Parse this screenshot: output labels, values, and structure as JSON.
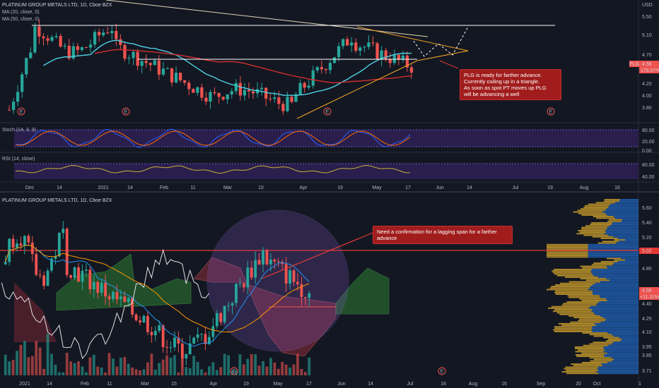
{
  "top_chart": {
    "title": "PLATINUM GROUP METALS LTD, 1D, Cboe BZX",
    "ma20_label": "MA (20, close, 0)",
    "ma50_label": "MA (50, close, 0)",
    "stoch_label": "Stoch (14, 3, 3)",
    "rsi_label": "RSI (14, close)",
    "currency": "USD",
    "price_axis": [
      "5.50",
      "5.10",
      "4.70",
      "4.56",
      "4.20",
      "4.00",
      "3.80"
    ],
    "stoch_axis": [
      "80.00",
      "20.00",
      "0.00"
    ],
    "rsi_axis": [
      "80.00",
      "40.00"
    ],
    "last_price_badge": "4.56",
    "ticker_badge": "PLG",
    "pct_badge": "176.07%",
    "date_axis": [
      "Dec",
      "14",
      "2021",
      "14",
      "Feb",
      "11",
      "Mar",
      "15",
      "Apr",
      "19",
      "May",
      "17",
      "Jun",
      "14",
      "Jul",
      "19",
      "Aug",
      "16"
    ],
    "earnings_marker": "E",
    "annotation": "PLG is ready for farther advance. Currently coiling up in a triangle.\nAs soon as spot PT moves up PLG\n   will be advancing a well"
  },
  "bottom_chart": {
    "title": "PLATINUM GROUP METALS LTD, 1D, Cboe BZX",
    "price_axis": [
      "5.60",
      "5.40",
      "5.20",
      "5.02",
      "4.80",
      "4.56",
      "4.40",
      "4.25",
      "4.10",
      "3.95",
      "3.85",
      "3.71"
    ],
    "resistance_badge": "5.02",
    "last_price_badge": "4.56",
    "pct_badge": "+11.11%",
    "date_axis": [
      "2021",
      "14",
      "Feb",
      "11",
      "Mar",
      "15",
      "Apr",
      "19",
      "May",
      "17",
      "Jun",
      "14",
      "Jul",
      "16",
      "Aug",
      "16",
      "Sep",
      "20",
      "Oct",
      "1"
    ],
    "earnings_marker": "E",
    "annotation": "Need a confirmation for a lagging span for a farther advance"
  },
  "colors": {
    "background": "#131722",
    "up_candle": "#26a69a",
    "down_candle": "#ef5350",
    "ma20": "#4dd0e1",
    "ma50": "#d32f2f",
    "triangle": "#f5a623",
    "stoch_band": "#2e1f52",
    "resistance": "#e53935",
    "cloud_green": "#2e7d32",
    "cloud_red": "#8e2b3a",
    "volume_profile_blue": "#1e5aa8",
    "volume_profile_gold": "#b8902a"
  },
  "chart_data": [
    {
      "type": "candlestick",
      "title": "PLATINUM GROUP METALS LTD, 1D, Cboe BZX",
      "ylim": [
        3.7,
        5.6
      ],
      "x": [
        "Dec",
        "14",
        "2021",
        "14",
        "Feb",
        "11",
        "Mar",
        "15",
        "Apr",
        "19",
        "May",
        "17"
      ],
      "series": [
        {
          "name": "MA (20, close, 0)",
          "values": [
            3.8,
            4.3,
            4.9,
            5.0,
            4.8,
            4.5,
            4.3,
            4.2,
            4.1,
            4.2,
            4.5,
            4.7
          ]
        },
        {
          "name": "MA (50, close, 0)",
          "values": [
            3.8,
            4.0,
            4.4,
            4.6,
            4.7,
            4.6,
            4.4,
            4.3,
            4.25,
            4.25,
            4.3,
            4.45
          ]
        }
      ],
      "annotations": [
        "PLG is ready for farther advance. Currently coiling up in a triangle."
      ]
    },
    {
      "type": "line",
      "title": "Stoch (14, 3, 3)",
      "ylim": [
        0,
        100
      ]
    },
    {
      "type": "line",
      "title": "RSI (14, close)",
      "ylim": [
        30,
        80
      ]
    },
    {
      "type": "candlestick",
      "title": "PLATINUM GROUP METALS LTD, 1D, Cboe BZX",
      "ylim": [
        3.71,
        5.6
      ],
      "x": [
        "2021",
        "14",
        "Feb",
        "11",
        "Mar",
        "15",
        "Apr",
        "19",
        "May",
        "17"
      ],
      "horizontal_lines": [
        5.02
      ],
      "annotations": [
        "Need a confirmation for a lagging span for a farther advance"
      ]
    }
  ]
}
